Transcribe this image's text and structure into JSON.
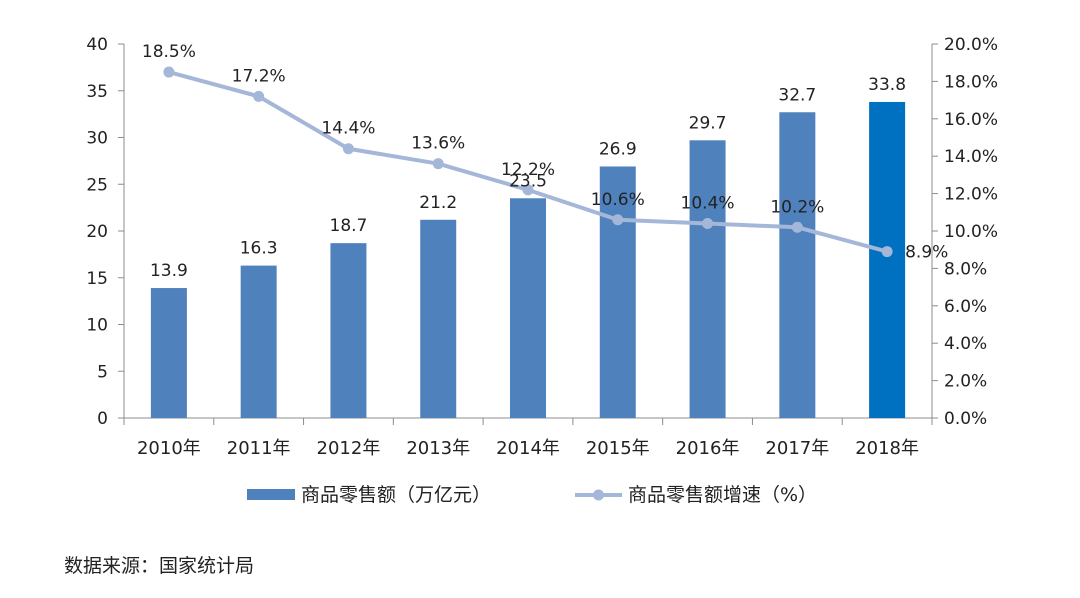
{
  "chart_data": {
    "type": "bar+line",
    "categories": [
      "2010年",
      "2011年",
      "2012年",
      "2013年",
      "2014年",
      "2015年",
      "2016年",
      "2017年",
      "2018年"
    ],
    "bar_series": {
      "name": "商品零售额（万亿元）",
      "values": [
        13.9,
        16.3,
        18.7,
        21.2,
        23.5,
        26.9,
        29.7,
        32.7,
        33.8
      ],
      "labels": [
        "13.9",
        "16.3",
        "18.7",
        "21.2",
        "23.5",
        "26.9",
        "29.7",
        "32.7",
        "33.8"
      ],
      "color": "#4F81BD",
      "highlight_color": "#0070C0",
      "highlight_index": 8
    },
    "line_series": {
      "name": "商品零售额增速（%）",
      "values": [
        18.5,
        17.2,
        14.4,
        13.6,
        12.2,
        10.6,
        10.4,
        10.2,
        8.9
      ],
      "labels": [
        "18.5%",
        "17.2%",
        "14.4%",
        "13.6%",
        "12.2%",
        "10.6%",
        "10.4%",
        "10.2%",
        "8.9%"
      ],
      "color": "#A4B7D9"
    },
    "y_left": {
      "min": 0,
      "max": 40,
      "step": 5,
      "ticks": [
        "0",
        "5",
        "10",
        "15",
        "20",
        "25",
        "30",
        "35",
        "40"
      ]
    },
    "y_right": {
      "min": 0,
      "max": 20,
      "step": 2,
      "ticks": [
        "0.0%",
        "2.0%",
        "4.0%",
        "6.0%",
        "8.0%",
        "10.0%",
        "12.0%",
        "14.0%",
        "16.0%",
        "18.0%",
        "20.0%"
      ]
    },
    "grid": false,
    "legend_position": "bottom"
  },
  "source_note": "数据来源：国家统计局"
}
